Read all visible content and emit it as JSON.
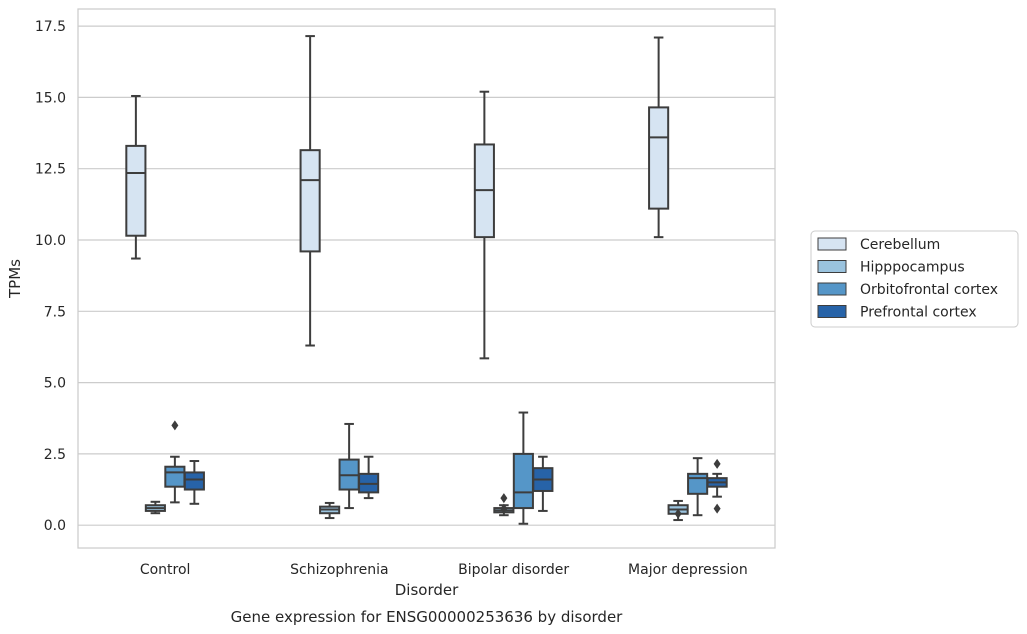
{
  "chart_data": {
    "type": "box",
    "title": "Gene expression for ENSG00000253636 by disorder",
    "xlabel": "Disorder",
    "ylabel": "TPMs",
    "ylim": [
      -0.8,
      18.1
    ],
    "yticks": [
      "0.0",
      "2.5",
      "5.0",
      "7.5",
      "10.0",
      "12.5",
      "15.0",
      "17.5"
    ],
    "grid": "horizontal",
    "legend_position": "right",
    "categories": [
      "Control",
      "Schizophrenia",
      "Bipolar disorder",
      "Major depression"
    ],
    "series": [
      {
        "name": "Cerebellum",
        "color": "#d6e4f2",
        "boxes": [
          {
            "whislo": 9.35,
            "q1": 10.15,
            "med": 12.35,
            "q3": 13.3,
            "whishi": 15.05,
            "fliers": []
          },
          {
            "whislo": 6.3,
            "q1": 9.6,
            "med": 12.1,
            "q3": 13.15,
            "whishi": 17.15,
            "fliers": []
          },
          {
            "whislo": 5.85,
            "q1": 10.1,
            "med": 11.75,
            "q3": 13.35,
            "whishi": 15.2,
            "fliers": []
          },
          {
            "whislo": 10.1,
            "q1": 11.1,
            "med": 13.6,
            "q3": 14.65,
            "whishi": 17.1,
            "fliers": []
          }
        ]
      },
      {
        "name": "Hipppocampus",
        "color": "#9ac3de",
        "boxes": [
          {
            "whislo": 0.42,
            "q1": 0.5,
            "med": 0.6,
            "q3": 0.7,
            "whishi": 0.82,
            "fliers": []
          },
          {
            "whislo": 0.25,
            "q1": 0.42,
            "med": 0.55,
            "q3": 0.65,
            "whishi": 0.78,
            "fliers": []
          },
          {
            "whislo": 0.35,
            "q1": 0.45,
            "med": 0.52,
            "q3": 0.6,
            "whishi": 0.7,
            "fliers": [
              0.95,
              0.58
            ]
          },
          {
            "whislo": 0.18,
            "q1": 0.4,
            "med": 0.55,
            "q3": 0.7,
            "whishi": 0.85,
            "fliers": [
              0.4
            ]
          }
        ]
      },
      {
        "name": "Orbitofrontal cortex",
        "color": "#5596c8",
        "boxes": [
          {
            "whislo": 0.8,
            "q1": 1.35,
            "med": 1.85,
            "q3": 2.05,
            "whishi": 2.4,
            "fliers": [
              3.5
            ]
          },
          {
            "whislo": 0.6,
            "q1": 1.25,
            "med": 1.75,
            "q3": 2.3,
            "whishi": 3.55,
            "fliers": []
          },
          {
            "whislo": 0.05,
            "q1": 0.6,
            "med": 1.15,
            "q3": 2.5,
            "whishi": 3.95,
            "fliers": []
          },
          {
            "whislo": 0.35,
            "q1": 1.1,
            "med": 1.65,
            "q3": 1.8,
            "whishi": 2.35,
            "fliers": []
          }
        ]
      },
      {
        "name": "Prefrontal cortex",
        "color": "#2763a8",
        "boxes": [
          {
            "whislo": 0.75,
            "q1": 1.25,
            "med": 1.6,
            "q3": 1.85,
            "whishi": 2.25,
            "fliers": []
          },
          {
            "whislo": 0.95,
            "q1": 1.15,
            "med": 1.45,
            "q3": 1.8,
            "whishi": 2.4,
            "fliers": []
          },
          {
            "whislo": 0.5,
            "q1": 1.2,
            "med": 1.6,
            "q3": 2.0,
            "whishi": 2.4,
            "fliers": []
          },
          {
            "whislo": 1.0,
            "q1": 1.35,
            "med": 1.5,
            "q3": 1.65,
            "whishi": 1.8,
            "fliers": [
              2.15,
              0.58
            ]
          }
        ]
      }
    ]
  }
}
